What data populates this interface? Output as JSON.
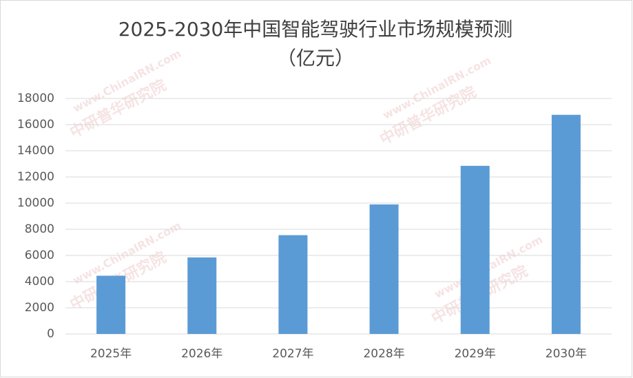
{
  "chart_data": {
    "type": "bar",
    "title": [
      "2025-2030年中国智能驾驶行业市场规模预测",
      "（亿元）"
    ],
    "watermark": [
      "www.ChinaIRN.com",
      "中研普华研究院"
    ],
    "categories": [
      "2025年",
      "2026年",
      "2027年",
      "2028年",
      "2029年",
      "2030年"
    ],
    "values": [
      4450,
      5850,
      7550,
      9900,
      12850,
      16750
    ],
    "color": "#5b9bd5",
    "ylim": [
      0,
      18000
    ],
    "yticks": [
      0,
      2000,
      4000,
      6000,
      8000,
      10000,
      12000,
      14000,
      16000,
      18000
    ],
    "grid": true
  }
}
